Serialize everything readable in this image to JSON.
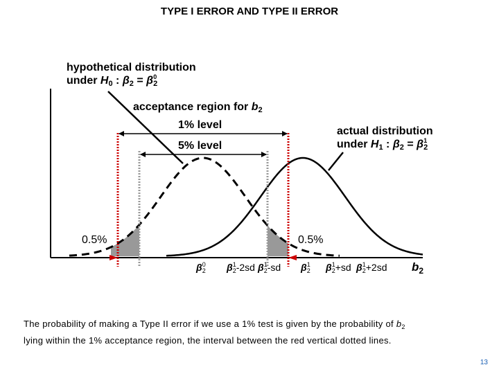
{
  "title": "TYPE I ERROR AND TYPE II ERROR",
  "h0_label": {
    "line1": "hypothetical distribution",
    "under": "under",
    "hyp_name": "H",
    "hyp_sub": "0",
    "colon": ":",
    "beta": "β",
    "beta_sub": "2",
    "equals": "=",
    "beta_sup": "0"
  },
  "h1_label": {
    "line1": "actual distribution",
    "under": "under",
    "hyp_name": "H",
    "hyp_sub": "1",
    "colon": ":",
    "beta": "β",
    "beta_sub": "2",
    "equals": "=",
    "beta_sup": "1"
  },
  "acceptance": {
    "text": "acceptance region for",
    "b": "b",
    "b_sub": "2",
    "one_percent": "1% level",
    "five_percent": "5% level"
  },
  "tails": {
    "left": "0.5%",
    "right": "0.5%"
  },
  "x_axis": {
    "ticks": [
      {
        "beta": "β",
        "sub": "2",
        "sup": "0",
        "suffix": ""
      },
      {
        "beta": "β",
        "sub": "2",
        "sup": "1",
        "suffix": "-2sd"
      },
      {
        "beta": "β",
        "sub": "2",
        "sup": "1",
        "suffix": "-sd"
      },
      {
        "beta": "β",
        "sub": "2",
        "sup": "1",
        "suffix": ""
      },
      {
        "beta": "β",
        "sub": "2",
        "sup": "1",
        "suffix": "+sd"
      },
      {
        "beta": "β",
        "sub": "2",
        "sup": "1",
        "suffix": "+2sd"
      }
    ],
    "axis_var": "b",
    "axis_var_sub": "2"
  },
  "caption": {
    "line1_prefix": "The probability of making a Type II error if we use a 1% test is given by the probability of",
    "b": "b",
    "b_sub": "2",
    "line2": "lying within the 1% acceptance region, the interval between the red vertical dotted lines."
  },
  "page_number": "13",
  "colors": {
    "red_line": "#cc0000",
    "grey_line": "#999999",
    "tail_fill": "#999999",
    "page_number": "#1a5fb4"
  }
}
